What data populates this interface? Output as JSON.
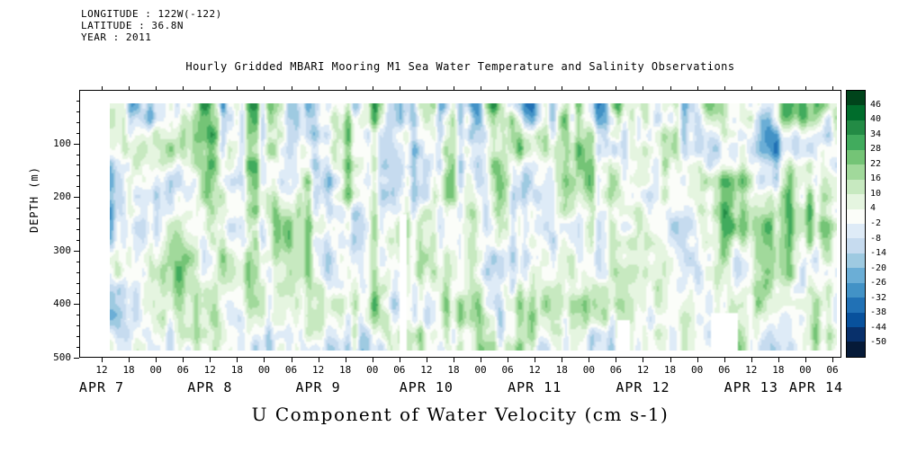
{
  "header": {
    "lines": [
      "LONGITUDE : 122W(-122)",
      "LATITUDE : 36.8N",
      "YEAR : 2011"
    ]
  },
  "title": "Hourly Gridded MBARI Mooring M1 Sea Water Temperature and Salinity Observations",
  "caption": "U Component of Water Velocity (cm s-1)",
  "chart_data": {
    "type": "heatmap",
    "title": "Hourly Gridded MBARI Mooring M1 Sea Water Temperature and Salinity Observations",
    "variable": "U Component of Water Velocity",
    "units": "cm s-1",
    "ylabel": "DEPTH (m)",
    "y_ticks": [
      100,
      200,
      300,
      400,
      500
    ],
    "y_range": [
      0,
      500
    ],
    "x_hour_ticks": [
      "12",
      "18",
      "00",
      "06",
      "12",
      "18",
      "00",
      "06",
      "12",
      "18",
      "00",
      "06",
      "12",
      "18",
      "00",
      "06",
      "12",
      "18",
      "00",
      "06",
      "12",
      "18",
      "00",
      "06",
      "12",
      "18",
      "00",
      "06"
    ],
    "xlabel_dates": [
      "APR 7",
      "APR 8",
      "APR 9",
      "APR 10",
      "APR 11",
      "APR 12",
      "APR 13",
      "APR 14"
    ],
    "date_label_tick_index": [
      0,
      4,
      8,
      12,
      16,
      20,
      24,
      26.4
    ],
    "colorbar_levels_desc": [
      46,
      40,
      34,
      28,
      22,
      16,
      10,
      4,
      -2,
      -8,
      -14,
      -20,
      -26,
      -32,
      -38,
      -44,
      -50
    ],
    "levels_asc": [
      -50,
      -44,
      -38,
      -32,
      -26,
      -20,
      -14,
      -8,
      -2,
      4,
      10,
      16,
      22,
      28,
      34,
      40,
      46
    ],
    "palette_low_to_high": [
      "#061a38",
      "#08306b",
      "#08519c",
      "#2171b5",
      "#4292c6",
      "#6baed6",
      "#9ecae1",
      "#c6dbef",
      "#deebf7",
      "#fbfdf9",
      "#e5f5e0",
      "#c7e9c0",
      "#a1d99b",
      "#74c476",
      "#41ab5d",
      "#238b45",
      "#006d2c",
      "#00441b"
    ],
    "displayed_value_range": [
      -32,
      34
    ],
    "grid": false,
    "legend_position": "right",
    "missing_data_regions": [
      {
        "x0": 0.398,
        "x1": 0.409,
        "y0": 0.45,
        "y1": 1.0
      },
      {
        "x0": 0.698,
        "x1": 0.716,
        "y0": 0.88,
        "y1": 1.0
      },
      {
        "x0": 0.828,
        "x1": 0.864,
        "y0": 0.85,
        "y1": 1.0
      }
    ],
    "field_note": "Vertically banded blotchy field: greens = positive U velocity, blues = negative; typical magnitudes within about ±25 cm s-1"
  }
}
